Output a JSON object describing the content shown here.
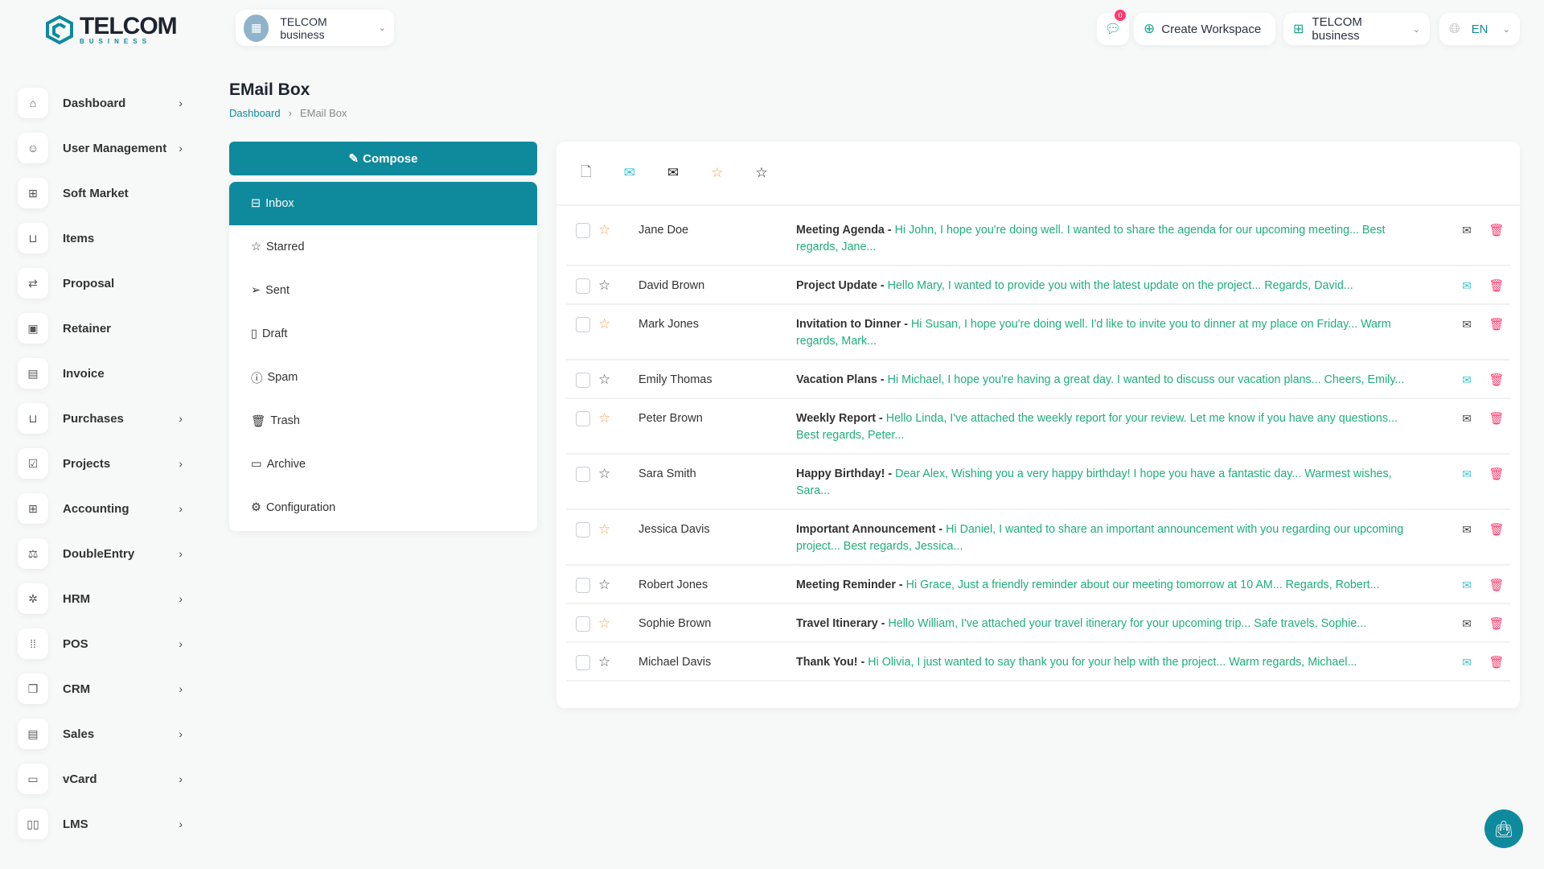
{
  "brand": {
    "logo_text": "TELCOM",
    "logo_sub": "BUSINESS"
  },
  "header": {
    "workspace": "TELCOM business",
    "notifications": "0",
    "create_workspace": "Create Workspace",
    "business": "TELCOM business",
    "language": "EN"
  },
  "sidebar": {
    "items": [
      {
        "label": "Dashboard",
        "icon": "home-icon",
        "glyph": "⌂",
        "chevron": true
      },
      {
        "label": "User Management",
        "icon": "users-icon",
        "glyph": "☺",
        "chevron": true
      },
      {
        "label": "Soft Market",
        "icon": "grid-icon",
        "glyph": "⊞",
        "chevron": false
      },
      {
        "label": "Items",
        "icon": "cart-icon",
        "glyph": "⊔",
        "chevron": false
      },
      {
        "label": "Proposal",
        "icon": "swap-icon",
        "glyph": "⇄",
        "chevron": false
      },
      {
        "label": "Retainer",
        "icon": "file-icon",
        "glyph": "▣",
        "chevron": false
      },
      {
        "label": "Invoice",
        "icon": "invoice-icon",
        "glyph": "▤",
        "chevron": false
      },
      {
        "label": "Purchases",
        "icon": "cart-icon",
        "glyph": "⊔",
        "chevron": true
      },
      {
        "label": "Projects",
        "icon": "checkbox-icon",
        "glyph": "☑",
        "chevron": true
      },
      {
        "label": "Accounting",
        "icon": "apps-icon",
        "glyph": "⊞",
        "chevron": true
      },
      {
        "label": "DoubleEntry",
        "icon": "scale-icon",
        "glyph": "⚖",
        "chevron": true
      },
      {
        "label": "HRM",
        "icon": "hrm-icon",
        "glyph": "✲",
        "chevron": true
      },
      {
        "label": "POS",
        "icon": "dots-grid-icon",
        "glyph": "⁞⁞",
        "chevron": true
      },
      {
        "label": "CRM",
        "icon": "layers-icon",
        "glyph": "❐",
        "chevron": true
      },
      {
        "label": "Sales",
        "icon": "receipt-icon",
        "glyph": "▤",
        "chevron": true
      },
      {
        "label": "vCard",
        "icon": "card-icon",
        "glyph": "▭",
        "chevron": true
      },
      {
        "label": "LMS",
        "icon": "book-icon",
        "glyph": "▯▯",
        "chevron": true
      }
    ]
  },
  "page": {
    "title": "EMail Box",
    "breadcrumb": [
      "Dashboard",
      "EMail Box"
    ]
  },
  "mailbox": {
    "compose": "Compose",
    "folders": [
      {
        "label": "Inbox",
        "icon": "inbox-icon",
        "glyph": "⊟",
        "active": true
      },
      {
        "label": "Starred",
        "icon": "star-icon",
        "glyph": "☆"
      },
      {
        "label": "Sent",
        "icon": "send-icon",
        "glyph": "➢"
      },
      {
        "label": "Draft",
        "icon": "draft-icon",
        "glyph": "▯"
      },
      {
        "label": "Spam",
        "icon": "spam-icon",
        "glyph": "ⓘ"
      },
      {
        "label": "Trash",
        "icon": "trash-icon",
        "glyph": "🗑"
      },
      {
        "label": "Archive",
        "icon": "archive-icon",
        "glyph": "▭"
      },
      {
        "label": "Configuration",
        "icon": "gear-icon",
        "glyph": "⚙"
      }
    ]
  },
  "colors": {
    "accent": "#0f8a9d",
    "preview": "#1fae7a",
    "delete": "#ff3a6e",
    "starred": "#f0a44a"
  },
  "emails": [
    {
      "sender": "Jane Doe",
      "subject": "Meeting Agenda",
      "preview": "Hi John, I hope you're doing well. I wanted to share the agenda for our upcoming meeting... Best regards, Jane...",
      "starred": true,
      "read": true
    },
    {
      "sender": "David Brown",
      "subject": "Project Update",
      "preview": "Hello Mary, I wanted to provide you with the latest update on the project... Regards, David...",
      "starred": false,
      "read": false
    },
    {
      "sender": "Mark Jones",
      "subject": "Invitation to Dinner",
      "preview": "Hi Susan, I hope you're doing well. I'd like to invite you to dinner at my place on Friday... Warm regards, Mark...",
      "starred": true,
      "read": true
    },
    {
      "sender": "Emily Thomas",
      "subject": "Vacation Plans",
      "preview": "Hi Michael, I hope you're having a great day. I wanted to discuss our vacation plans... Cheers, Emily...",
      "starred": false,
      "read": false
    },
    {
      "sender": "Peter Brown",
      "subject": "Weekly Report",
      "preview": "Hello Linda, I've attached the weekly report for your review. Let me know if you have any questions... Best regards, Peter...",
      "starred": true,
      "read": true
    },
    {
      "sender": "Sara Smith",
      "subject": "Happy Birthday!",
      "preview": "Dear Alex, Wishing you a very happy birthday! I hope you have a fantastic day... Warmest wishes, Sara...",
      "starred": false,
      "read": false
    },
    {
      "sender": "Jessica Davis",
      "subject": "Important Announcement",
      "preview": "Hi Daniel, I wanted to share an important announcement with you regarding our upcoming project... Best regards, Jessica...",
      "starred": true,
      "read": true
    },
    {
      "sender": "Robert Jones",
      "subject": "Meeting Reminder",
      "preview": "Hi Grace, Just a friendly reminder about our meeting tomorrow at 10 AM... Regards, Robert...",
      "starred": false,
      "read": false
    },
    {
      "sender": "Sophie Brown",
      "subject": "Travel Itinerary",
      "preview": "Hello William, I've attached your travel itinerary for your upcoming trip... Safe travels, Sophie...",
      "starred": true,
      "read": true
    },
    {
      "sender": "Michael Davis",
      "subject": "Thank You!",
      "preview": "Hi Olivia, I just wanted to say thank you for your help with the project... Warm regards, Michael...",
      "starred": false,
      "read": false
    }
  ]
}
